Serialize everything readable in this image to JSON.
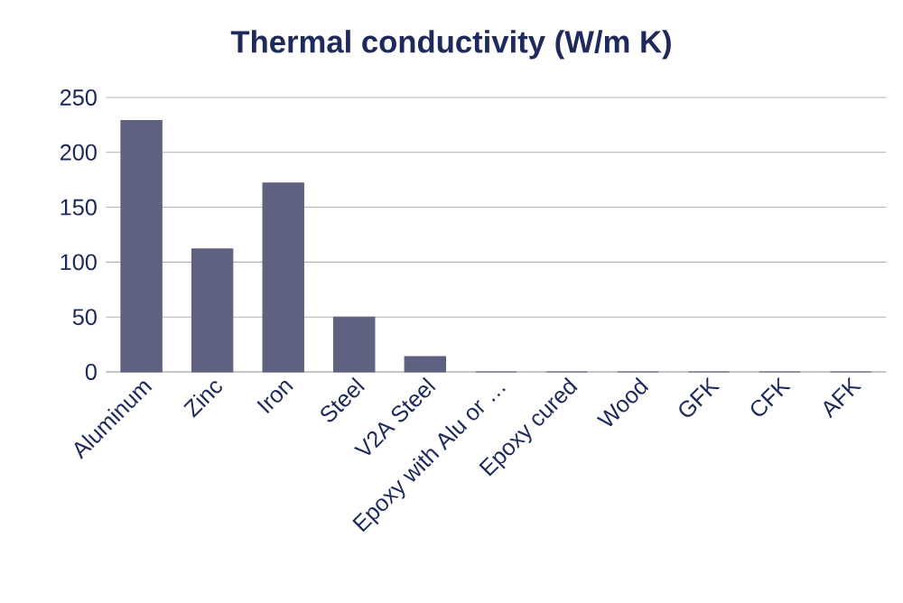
{
  "chart_data": {
    "type": "bar",
    "title": "Thermal conductivity (W/m K)",
    "categories": [
      "Aluminum",
      "Zinc",
      "Iron",
      "Steel",
      "V2A Steel",
      "Epoxy with Alu or …",
      "Epoxy cured",
      "Wood",
      "GFK",
      "CFK",
      "AFK"
    ],
    "values": [
      229,
      112,
      172,
      50,
      14,
      0,
      0,
      0,
      0,
      0,
      0
    ],
    "color": "#5f6180",
    "ylim": [
      0,
      250
    ],
    "yticks": [
      0,
      50,
      100,
      150,
      200,
      250
    ],
    "grid": "y"
  }
}
